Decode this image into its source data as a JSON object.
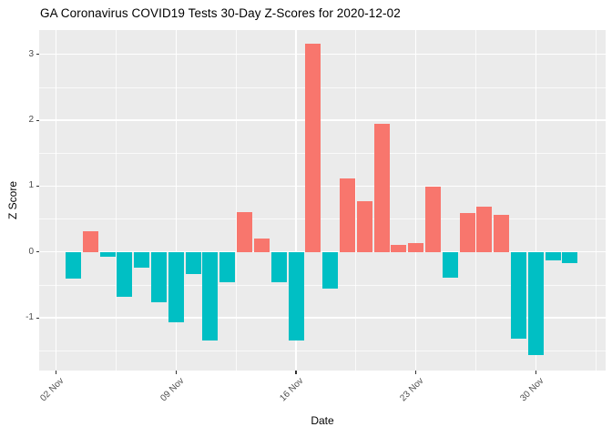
{
  "chart_data": {
    "type": "bar",
    "title": "GA Coronavirus COVID19 Tests 30-Day Z-Scores for 2020-12-02",
    "xlabel": "Date",
    "ylabel": "Z Score",
    "x": [
      "2020-11-03",
      "2020-11-04",
      "2020-11-05",
      "2020-11-06",
      "2020-11-07",
      "2020-11-08",
      "2020-11-09",
      "2020-11-10",
      "2020-11-11",
      "2020-11-12",
      "2020-11-13",
      "2020-11-14",
      "2020-11-15",
      "2020-11-16",
      "2020-11-17",
      "2020-11-18",
      "2020-11-19",
      "2020-11-20",
      "2020-11-21",
      "2020-11-22",
      "2020-11-23",
      "2020-11-24",
      "2020-11-25",
      "2020-11-26",
      "2020-11-27",
      "2020-11-28",
      "2020-11-29",
      "2020-11-30",
      "2020-12-01",
      "2020-12-02"
    ],
    "values": [
      -0.4,
      0.31,
      -0.07,
      -0.68,
      -0.24,
      -0.77,
      -1.07,
      -0.34,
      -1.35,
      -0.46,
      0.61,
      0.21,
      -0.46,
      -1.35,
      3.16,
      -0.55,
      1.12,
      0.77,
      1.95,
      0.11,
      0.13,
      0.99,
      -0.39,
      0.59,
      0.69,
      0.57,
      -1.31,
      -1.57,
      -0.13,
      -0.17
    ],
    "positive_color": "#F8766D",
    "negative_color": "#00BFC4",
    "panel_background": "#EBEBEB",
    "grid_color": "#FFFFFF",
    "grid": "major+minor",
    "legend_position": "none",
    "ylim": [
      -1.8,
      3.37
    ],
    "y_ticks": [
      {
        "label": "-1",
        "value": -1
      },
      {
        "label": "0",
        "value": 0
      },
      {
        "label": "1",
        "value": 1
      },
      {
        "label": "2",
        "value": 2
      },
      {
        "label": "3",
        "value": 3
      }
    ],
    "y_minor_ticks": [
      -1.5,
      -0.5,
      0.5,
      1.5,
      2.5
    ],
    "x_ticks": [
      {
        "label": "02 Nov",
        "date": "2020-11-02"
      },
      {
        "label": "09 Nov",
        "date": "2020-11-09"
      },
      {
        "label": "16 Nov",
        "date": "2020-11-16"
      },
      {
        "label": "23 Nov",
        "date": "2020-11-23"
      },
      {
        "label": "30 Nov",
        "date": "2020-11-30"
      }
    ]
  }
}
